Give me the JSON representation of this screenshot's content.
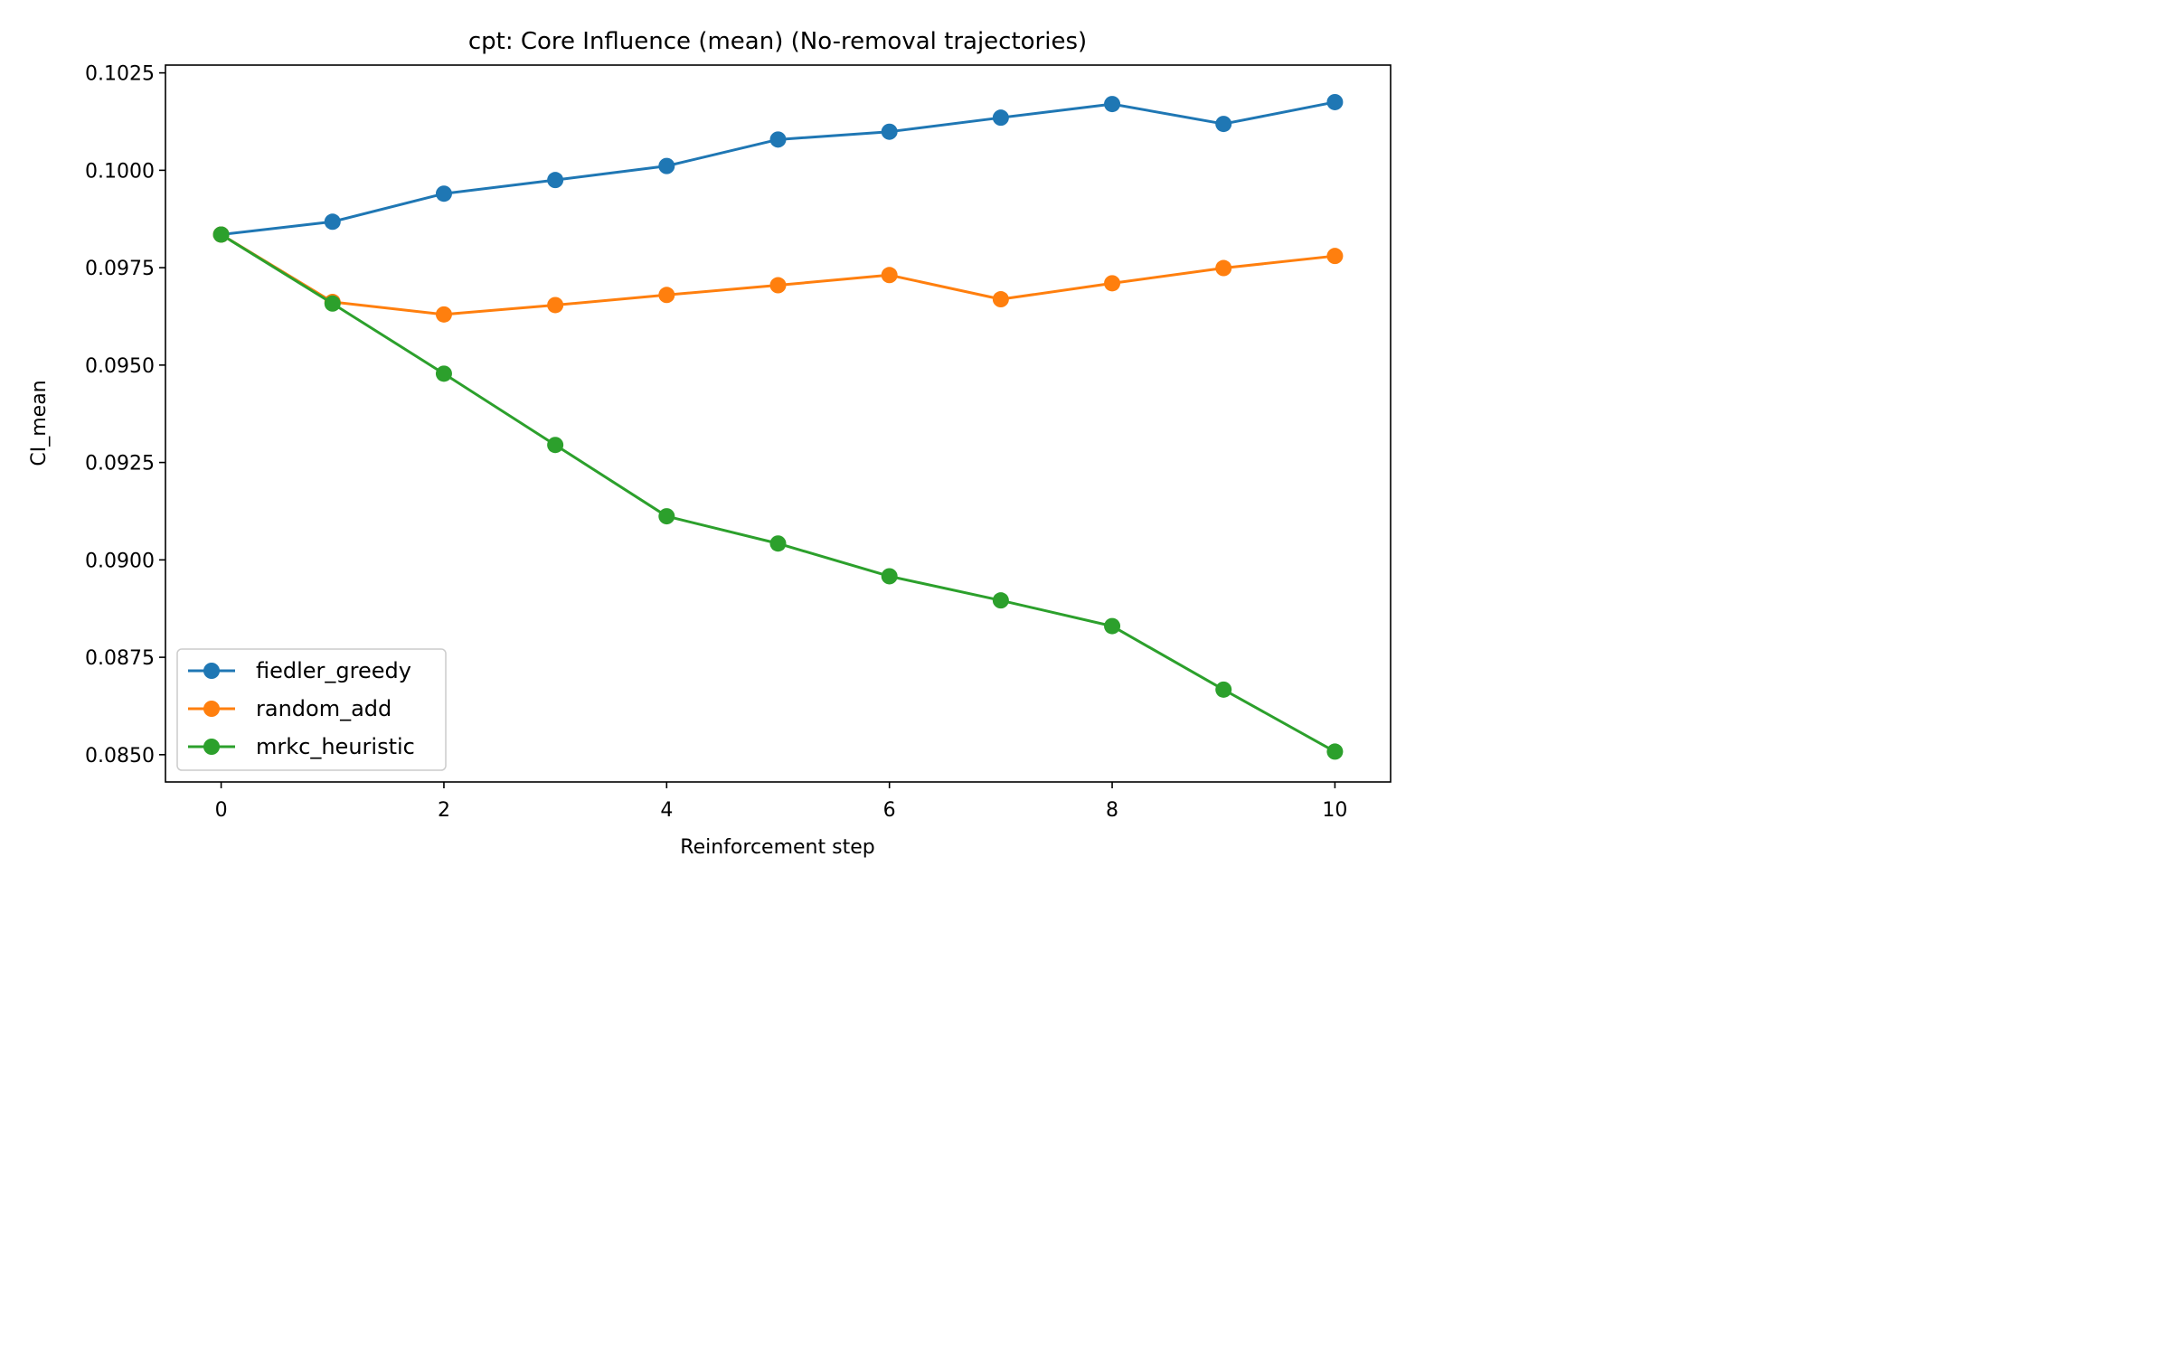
{
  "chart_data": {
    "type": "line",
    "title": "cpt: Core Influence (mean) (No-removal trajectories)",
    "xlabel": "Reinforcement step",
    "ylabel": "CI_mean",
    "x": [
      0,
      1,
      2,
      3,
      4,
      5,
      6,
      7,
      8,
      9,
      10
    ],
    "xlim": [
      -0.5,
      10.5
    ],
    "ylim": [
      0.0843,
      0.1027
    ],
    "xticks": [
      0,
      2,
      4,
      6,
      8,
      10
    ],
    "xtick_labels": [
      "0",
      "2",
      "4",
      "6",
      "8",
      "10"
    ],
    "yticks": [
      0.085,
      0.0875,
      0.09,
      0.0925,
      0.095,
      0.0975,
      0.1,
      0.1025
    ],
    "ytick_labels": [
      "0.0850",
      "0.0875",
      "0.0900",
      "0.0925",
      "0.0950",
      "0.0975",
      "0.1000",
      "0.1025"
    ],
    "grid": false,
    "legend_position": "lower-left",
    "series": [
      {
        "name": "fiedler_greedy",
        "color": "#1f77b4",
        "values": [
          0.09835,
          0.09868,
          0.0994,
          0.09975,
          0.10011,
          0.10079,
          0.10099,
          0.10135,
          0.1017,
          0.10119,
          0.10175
        ]
      },
      {
        "name": "random_add",
        "color": "#ff7f0e",
        "values": [
          0.09835,
          0.09662,
          0.0963,
          0.09654,
          0.0968,
          0.09705,
          0.09731,
          0.09669,
          0.0971,
          0.09749,
          0.0978
        ]
      },
      {
        "name": "mrkc_heuristic",
        "color": "#2ca02c",
        "values": [
          0.09835,
          0.09658,
          0.09478,
          0.09295,
          0.09112,
          0.09042,
          0.08958,
          0.08896,
          0.0883,
          0.08667,
          0.08508
        ]
      }
    ]
  }
}
